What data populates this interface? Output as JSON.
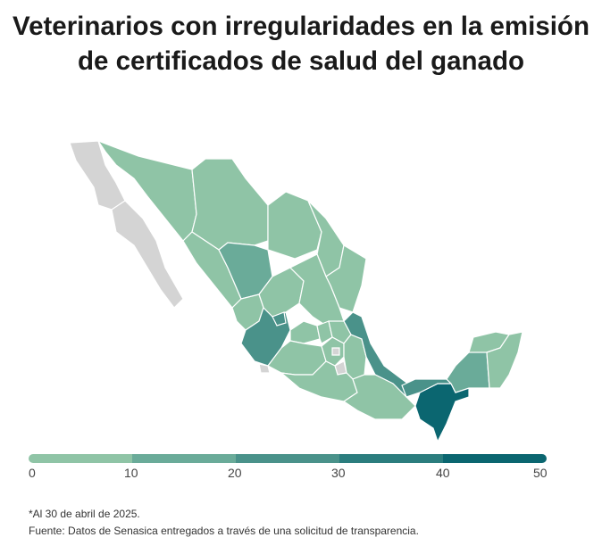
{
  "title": "Veterinarios con irregularidades en la emisión de certificados de salud del ganado",
  "legend": {
    "ticks": [
      "0",
      "10",
      "20",
      "30",
      "40",
      "50"
    ],
    "colors": [
      "#8fc4a6",
      "#6aab99",
      "#4a928a",
      "#2b7d7e",
      "#0b6670"
    ],
    "no_data_color": "#d4d4d4"
  },
  "footnote": "*Al 30 de abril de 2025.",
  "source": "Fuente: Datos de Senasica entregados a través de una solicitud de transparencia.",
  "chart_data": {
    "type": "heatmap",
    "subtype": "choropleth",
    "title": "Veterinarios con irregularidades en la emisión de certificados de salud del ganado",
    "scale_range": [
      0,
      50
    ],
    "bins": [
      [
        0,
        10
      ],
      [
        10,
        20
      ],
      [
        20,
        30
      ],
      [
        30,
        40
      ],
      [
        40,
        50
      ]
    ],
    "states": {
      "Baja California": null,
      "Baja California Sur": null,
      "Sonora": 0,
      "Chihuahua": 0,
      "Coahuila": 0,
      "Nuevo León": 0,
      "Tamaulipas": 0,
      "Sinaloa": 0,
      "Durango": 1,
      "Zacatecas": 0,
      "San Luis Potosí": 0,
      "Nayarit": 0,
      "Jalisco": 2,
      "Aguascalientes": 2,
      "Guanajuato": 0,
      "Querétaro": 0,
      "Hidalgo": 0,
      "Michoacán": 0,
      "Colima": null,
      "Estado de México": 0,
      "Ciudad de México": null,
      "Morelos": null,
      "Tlaxcala": 0,
      "Puebla": 0,
      "Veracruz": 2,
      "Guerrero": 0,
      "Oaxaca": 0,
      "Chiapas": 4,
      "Tabasco": 2,
      "Campeche": 1,
      "Yucatán": 0,
      "Quintana Roo": 0
    },
    "state_values_note": "values are bin indexes (0 = 0-10 ... 4 = 40-50); null = no data"
  }
}
